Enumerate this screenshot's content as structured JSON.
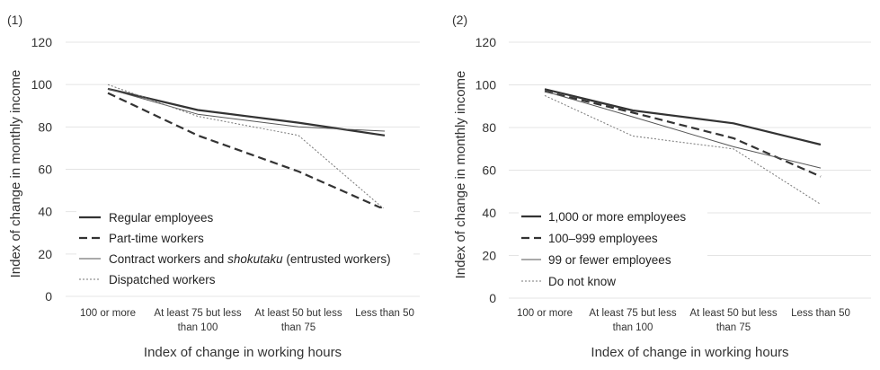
{
  "chart_data": [
    {
      "type": "line",
      "panel_label": "(1)",
      "categories": [
        "100 or more",
        "At least 75 but less than 100",
        "At least 50 but less than 75",
        "Less than 50"
      ],
      "xlabel": "Index of change in working hours",
      "ylabel": "Index of change in monthly income",
      "ylim": [
        0,
        120
      ],
      "yticks": [
        0,
        20,
        40,
        60,
        80,
        100,
        120
      ],
      "grid": true,
      "legend_position": "bottom-left",
      "series": [
        {
          "name": "Regular employees",
          "values": [
            98,
            88,
            82,
            76
          ],
          "style": "solid-thick",
          "color": "#333333"
        },
        {
          "name": "Part-time workers",
          "values": [
            96,
            76,
            59,
            41
          ],
          "style": "dashed-thick",
          "color": "#333333"
        },
        {
          "name_parts": [
            "Contract workers and ",
            "shokutaku",
            " (entrusted workers)"
          ],
          "values": [
            98,
            86,
            80,
            78
          ],
          "style": "solid-thin",
          "color": "#555555"
        },
        {
          "name": "Dispatched workers",
          "values": [
            100,
            85,
            76,
            41
          ],
          "style": "dotted",
          "color": "#777777"
        }
      ]
    },
    {
      "type": "line",
      "panel_label": "(2)",
      "categories": [
        "100 or more",
        "At least 75 but less than 100",
        "At least 50 but less than 75",
        "Less than 50"
      ],
      "xlabel": "Index of change in working hours",
      "ylabel": "Index of change in monthly income",
      "ylim": [
        0,
        120
      ],
      "yticks": [
        0,
        20,
        40,
        60,
        80,
        100,
        120
      ],
      "grid": true,
      "legend_position": "bottom-left",
      "series": [
        {
          "name": "1,000 or more employees",
          "values": [
            98,
            88,
            82,
            72
          ],
          "style": "solid-thick",
          "color": "#333333"
        },
        {
          "name": "100–999 employees",
          "values": [
            97,
            87,
            75,
            57
          ],
          "style": "dashed-thick",
          "color": "#333333"
        },
        {
          "name": "99 or fewer employees",
          "values": [
            97,
            85,
            71,
            61
          ],
          "style": "solid-thin",
          "color": "#555555"
        },
        {
          "name": "Do not know",
          "values": [
            95,
            76,
            70,
            44
          ],
          "style": "dotted",
          "color": "#777777"
        }
      ]
    }
  ]
}
